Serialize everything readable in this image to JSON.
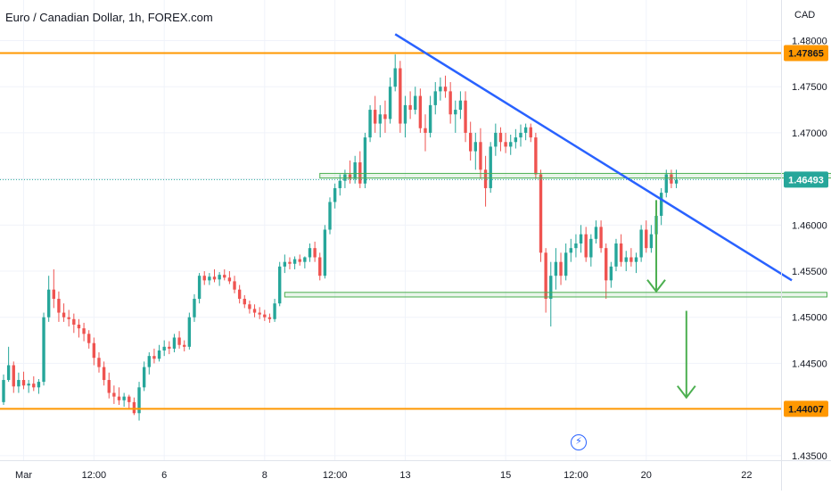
{
  "header": {
    "symbol_title": "Euro / Canadian Dollar, 1h, FOREX.com",
    "currency": "CAD"
  },
  "icons": {
    "event": "lightning-bolt-icon"
  },
  "chart_data": {
    "type": "candlestick",
    "title": "Euro / Canadian Dollar, 1h, FOREX.com",
    "ylabel": "CAD",
    "ylim": [
      1.4345,
      1.4815
    ],
    "yticks": [
      1.435,
      1.44,
      1.445,
      1.45,
      1.455,
      1.46,
      1.465,
      1.47,
      1.475,
      1.48
    ],
    "ytick_labels": [
      "1.43500",
      "1.44000",
      "1.44500",
      "1.45000",
      "1.45500",
      "1.46000",
      "1.46500",
      "1.47000",
      "1.47500",
      "1.48000"
    ],
    "xlim": [
      0,
      153
    ],
    "x_ticks": [
      {
        "x": 4,
        "label": "Mar"
      },
      {
        "x": 18,
        "label": "12:00"
      },
      {
        "x": 32,
        "label": "6"
      },
      {
        "x": 52,
        "label": "8"
      },
      {
        "x": 66,
        "label": "12:00"
      },
      {
        "x": 80,
        "label": "13"
      },
      {
        "x": 100,
        "label": "15"
      },
      {
        "x": 114,
        "label": "12:00"
      },
      {
        "x": 128,
        "label": "20"
      },
      {
        "x": 148,
        "label": "22"
      },
      {
        "x": 162,
        "label": "12:00"
      }
    ],
    "grid": true,
    "colors": {
      "up": "#26a69a",
      "down": "#ef5350",
      "horizontal_level": "#ff9800",
      "trendline": "#2962ff",
      "zone": "#4caf50",
      "arrow": "#4caf50",
      "current_price": "#26a69a"
    },
    "price_labels": [
      {
        "value": 1.47865,
        "label": "1.47865",
        "color": "#ff9800"
      },
      {
        "value": 1.46493,
        "label": "1.46493",
        "color": "#26a69a"
      },
      {
        "value": 1.44007,
        "label": "1.44007",
        "color": "#ff9800"
      }
    ],
    "horizontal_levels": [
      {
        "name": "resistance",
        "value": 1.47865
      },
      {
        "name": "support",
        "value": 1.44007
      }
    ],
    "zones": [
      {
        "x0": 63,
        "x1": 171,
        "y0": 1.4651,
        "y1": 1.4656
      },
      {
        "x0": 56,
        "x1": 164,
        "y0": 1.4522,
        "y1": 1.4527
      }
    ],
    "trendline": {
      "x0": 78,
      "y0": 1.4807,
      "x1": 157,
      "y1": 1.454
    },
    "arrows": [
      {
        "x0": 130,
        "y0": 1.4627,
        "x1": 130,
        "y1": 1.4528
      },
      {
        "x0": 136,
        "y0": 1.4507,
        "x1": 136,
        "y1": 1.4413
      }
    ],
    "current_price": 1.46493,
    "ohlc": [
      [
        1.4408,
        1.4438,
        1.4405,
        1.4432
      ],
      [
        1.4432,
        1.4468,
        1.443,
        1.4448
      ],
      [
        1.4448,
        1.4452,
        1.4418,
        1.4425
      ],
      [
        1.4425,
        1.444,
        1.4418,
        1.4432
      ],
      [
        1.4432,
        1.4441,
        1.4422,
        1.4426
      ],
      [
        1.4426,
        1.4432,
        1.4418,
        1.4428
      ],
      [
        1.4428,
        1.4436,
        1.442,
        1.4424
      ],
      [
        1.4424,
        1.4433,
        1.4417,
        1.443
      ],
      [
        1.443,
        1.4505,
        1.4426,
        1.45
      ],
      [
        1.45,
        1.4545,
        1.4495,
        1.453
      ],
      [
        1.453,
        1.4552,
        1.451,
        1.452
      ],
      [
        1.452,
        1.4528,
        1.4495,
        1.4505
      ],
      [
        1.4505,
        1.4515,
        1.4495,
        1.45
      ],
      [
        1.45,
        1.4508,
        1.449,
        1.4498
      ],
      [
        1.4498,
        1.4504,
        1.4483,
        1.4492
      ],
      [
        1.4492,
        1.4498,
        1.4478,
        1.4488
      ],
      [
        1.4488,
        1.4494,
        1.4474,
        1.4482
      ],
      [
        1.4482,
        1.4486,
        1.4466,
        1.4472
      ],
      [
        1.4472,
        1.4478,
        1.4448,
        1.4456
      ],
      [
        1.4456,
        1.4462,
        1.444,
        1.4446
      ],
      [
        1.4446,
        1.4452,
        1.4426,
        1.4432
      ],
      [
        1.4432,
        1.444,
        1.4412,
        1.4418
      ],
      [
        1.4418,
        1.4426,
        1.4406,
        1.4414
      ],
      [
        1.4414,
        1.4424,
        1.4405,
        1.441
      ],
      [
        1.441,
        1.4418,
        1.4403,
        1.4414
      ],
      [
        1.4414,
        1.4416,
        1.44,
        1.4408
      ],
      [
        1.4408,
        1.4413,
        1.4394,
        1.4396
      ],
      [
        1.4396,
        1.443,
        1.4388,
        1.4424
      ],
      [
        1.4424,
        1.4452,
        1.442,
        1.4446
      ],
      [
        1.4446,
        1.4462,
        1.4438,
        1.4458
      ],
      [
        1.4458,
        1.4466,
        1.445,
        1.4455
      ],
      [
        1.4455,
        1.447,
        1.4452,
        1.4464
      ],
      [
        1.4464,
        1.4475,
        1.4458,
        1.4468
      ],
      [
        1.4468,
        1.4474,
        1.446,
        1.4466
      ],
      [
        1.4466,
        1.4482,
        1.4462,
        1.4478
      ],
      [
        1.4478,
        1.4485,
        1.4466,
        1.447
      ],
      [
        1.447,
        1.4475,
        1.4463,
        1.4468
      ],
      [
        1.4468,
        1.4505,
        1.4465,
        1.45
      ],
      [
        1.45,
        1.4525,
        1.4495,
        1.452
      ],
      [
        1.452,
        1.4548,
        1.4515,
        1.4545
      ],
      [
        1.4545,
        1.455,
        1.4535,
        1.454
      ],
      [
        1.454,
        1.4548,
        1.4535,
        1.4544
      ],
      [
        1.4544,
        1.4552,
        1.4538,
        1.4541
      ],
      [
        1.4541,
        1.4549,
        1.4534,
        1.4546
      ],
      [
        1.4546,
        1.4552,
        1.454,
        1.4543
      ],
      [
        1.4543,
        1.455,
        1.4536,
        1.4539
      ],
      [
        1.4539,
        1.4545,
        1.4526,
        1.453
      ],
      [
        1.453,
        1.4535,
        1.4515,
        1.452
      ],
      [
        1.452,
        1.4524,
        1.451,
        1.4514
      ],
      [
        1.4514,
        1.4518,
        1.4504,
        1.4509
      ],
      [
        1.4509,
        1.4514,
        1.45,
        1.4505
      ],
      [
        1.4505,
        1.4511,
        1.4498,
        1.4503
      ],
      [
        1.4503,
        1.4508,
        1.4496,
        1.45
      ],
      [
        1.45,
        1.4504,
        1.4494,
        1.4498
      ],
      [
        1.4498,
        1.452,
        1.4495,
        1.4515
      ],
      [
        1.4515,
        1.456,
        1.4512,
        1.4555
      ],
      [
        1.4555,
        1.4568,
        1.4548,
        1.456
      ],
      [
        1.456,
        1.4565,
        1.4552,
        1.4558
      ],
      [
        1.4558,
        1.4566,
        1.4552,
        1.4563
      ],
      [
        1.4563,
        1.4568,
        1.4556,
        1.456
      ],
      [
        1.456,
        1.4566,
        1.4553,
        1.4565
      ],
      [
        1.4565,
        1.458,
        1.456,
        1.4575
      ],
      [
        1.4575,
        1.4582,
        1.456,
        1.4565
      ],
      [
        1.4565,
        1.457,
        1.454,
        1.4545
      ],
      [
        1.4545,
        1.46,
        1.4542,
        1.4595
      ],
      [
        1.4595,
        1.463,
        1.459,
        1.4625
      ],
      [
        1.4625,
        1.4645,
        1.4618,
        1.464
      ],
      [
        1.464,
        1.4655,
        1.4632,
        1.4648
      ],
      [
        1.4648,
        1.466,
        1.464,
        1.4655
      ],
      [
        1.4655,
        1.467,
        1.4645,
        1.465
      ],
      [
        1.465,
        1.4675,
        1.4645,
        1.4668
      ],
      [
        1.4668,
        1.468,
        1.464,
        1.4645
      ],
      [
        1.4645,
        1.47,
        1.464,
        1.4695
      ],
      [
        1.4695,
        1.473,
        1.469,
        1.4725
      ],
      [
        1.4725,
        1.474,
        1.47,
        1.471
      ],
      [
        1.471,
        1.473,
        1.4695,
        1.472
      ],
      [
        1.472,
        1.4735,
        1.47,
        1.4715
      ],
      [
        1.4715,
        1.476,
        1.471,
        1.475
      ],
      [
        1.475,
        1.4785,
        1.4745,
        1.477
      ],
      [
        1.477,
        1.4778,
        1.47,
        1.471
      ],
      [
        1.471,
        1.474,
        1.4695,
        1.473
      ],
      [
        1.473,
        1.4745,
        1.4715,
        1.4725
      ],
      [
        1.4725,
        1.475,
        1.472,
        1.474
      ],
      [
        1.474,
        1.4748,
        1.47,
        1.4705
      ],
      [
        1.4705,
        1.472,
        1.468,
        1.47
      ],
      [
        1.47,
        1.474,
        1.4695,
        1.473
      ],
      [
        1.473,
        1.4755,
        1.472,
        1.4745
      ],
      [
        1.4745,
        1.476,
        1.4735,
        1.475
      ],
      [
        1.475,
        1.4762,
        1.4738,
        1.4745
      ],
      [
        1.4745,
        1.4755,
        1.471,
        1.472
      ],
      [
        1.472,
        1.4735,
        1.47,
        1.4725
      ],
      [
        1.4725,
        1.4745,
        1.4715,
        1.4735
      ],
      [
        1.4735,
        1.4745,
        1.469,
        1.47
      ],
      [
        1.47,
        1.4712,
        1.467,
        1.468
      ],
      [
        1.468,
        1.47,
        1.466,
        1.469
      ],
      [
        1.469,
        1.4705,
        1.465,
        1.466
      ],
      [
        1.466,
        1.4675,
        1.462,
        1.464
      ],
      [
        1.464,
        1.469,
        1.4635,
        1.4685
      ],
      [
        1.4685,
        1.471,
        1.4675,
        1.47
      ],
      [
        1.47,
        1.4706,
        1.468,
        1.469
      ],
      [
        1.469,
        1.47,
        1.4678,
        1.4685
      ],
      [
        1.4685,
        1.4698,
        1.4676,
        1.469
      ],
      [
        1.469,
        1.4704,
        1.4683,
        1.4695
      ],
      [
        1.4695,
        1.4709,
        1.4685,
        1.47
      ],
      [
        1.47,
        1.471,
        1.4692,
        1.4706
      ],
      [
        1.4706,
        1.471,
        1.469,
        1.4695
      ],
      [
        1.4695,
        1.47,
        1.465,
        1.4655
      ],
      [
        1.4655,
        1.466,
        1.456,
        1.457
      ],
      [
        1.457,
        1.4575,
        1.4505,
        1.452
      ],
      [
        1.452,
        1.456,
        1.449,
        1.4545
      ],
      [
        1.4545,
        1.4575,
        1.453,
        1.456
      ],
      [
        1.456,
        1.457,
        1.4535,
        1.4545
      ],
      [
        1.4545,
        1.458,
        1.454,
        1.457
      ],
      [
        1.457,
        1.4585,
        1.456,
        1.4575
      ],
      [
        1.4575,
        1.459,
        1.4565,
        1.458
      ],
      [
        1.458,
        1.46,
        1.457,
        1.459
      ],
      [
        1.459,
        1.4598,
        1.456,
        1.4565
      ],
      [
        1.4565,
        1.459,
        1.4555,
        1.4585
      ],
      [
        1.4585,
        1.4605,
        1.458,
        1.4598
      ],
      [
        1.4598,
        1.4605,
        1.457,
        1.4575
      ],
      [
        1.4575,
        1.458,
        1.452,
        1.454
      ],
      [
        1.454,
        1.456,
        1.4532,
        1.4555
      ],
      [
        1.4555,
        1.4585,
        1.455,
        1.458
      ],
      [
        1.458,
        1.459,
        1.4555,
        1.456
      ],
      [
        1.456,
        1.4572,
        1.455,
        1.4565
      ],
      [
        1.4565,
        1.4575,
        1.4555,
        1.456
      ],
      [
        1.456,
        1.457,
        1.4548,
        1.4565
      ],
      [
        1.4565,
        1.46,
        1.456,
        1.4595
      ],
      [
        1.4595,
        1.4605,
        1.457,
        1.4575
      ],
      [
        1.4575,
        1.46,
        1.457,
        1.459
      ],
      [
        1.459,
        1.4615,
        1.4585,
        1.461
      ],
      [
        1.461,
        1.464,
        1.46,
        1.4635
      ],
      [
        1.4635,
        1.466,
        1.463,
        1.4655
      ],
      [
        1.4655,
        1.466,
        1.464,
        1.4645
      ],
      [
        1.4645,
        1.466,
        1.464,
        1.4649
      ]
    ]
  }
}
